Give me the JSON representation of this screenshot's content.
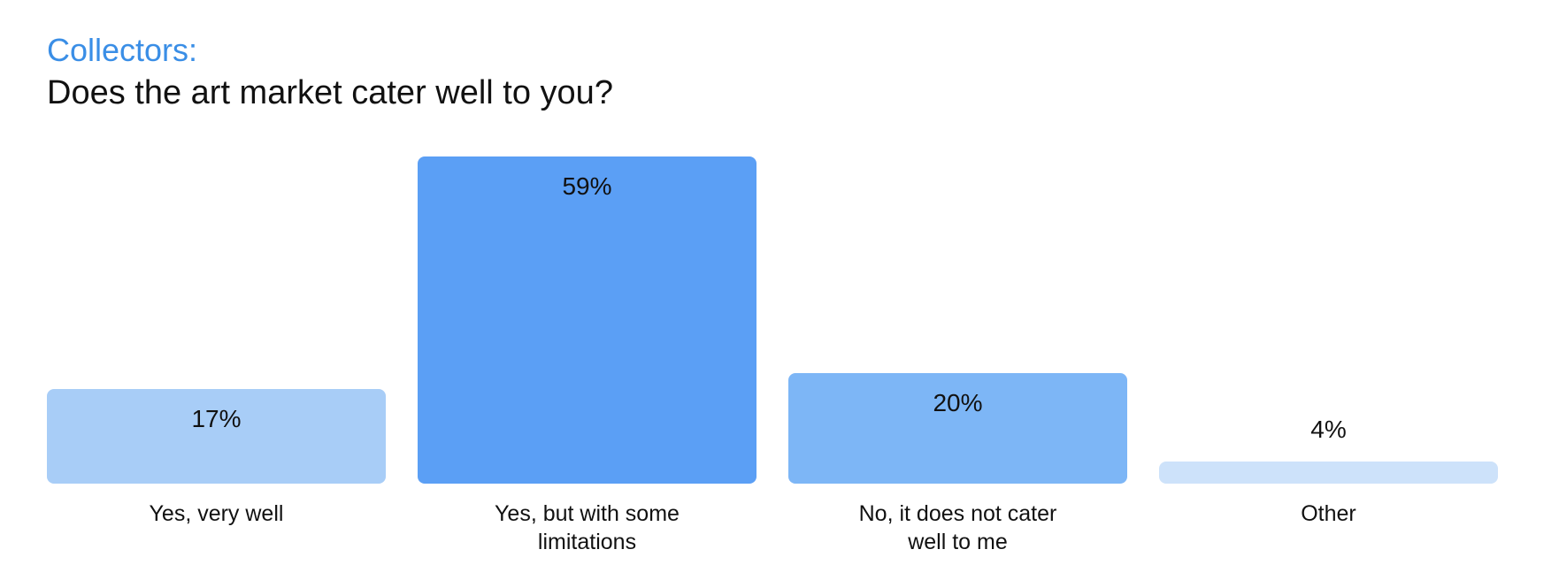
{
  "chart_data": {
    "type": "bar",
    "title": "Collectors:",
    "subtitle": "Does the art market cater well to you?",
    "categories": [
      "Yes, very well",
      "Yes, but with some limitations",
      "No, it does not cater well to me",
      "Other"
    ],
    "values": [
      17,
      59,
      20,
      4
    ],
    "value_labels": [
      "17%",
      "59%",
      "20%",
      "4%"
    ],
    "colors": [
      "#a8cdf7",
      "#5b9ff5",
      "#7db6f6",
      "#cde2fa"
    ]
  }
}
